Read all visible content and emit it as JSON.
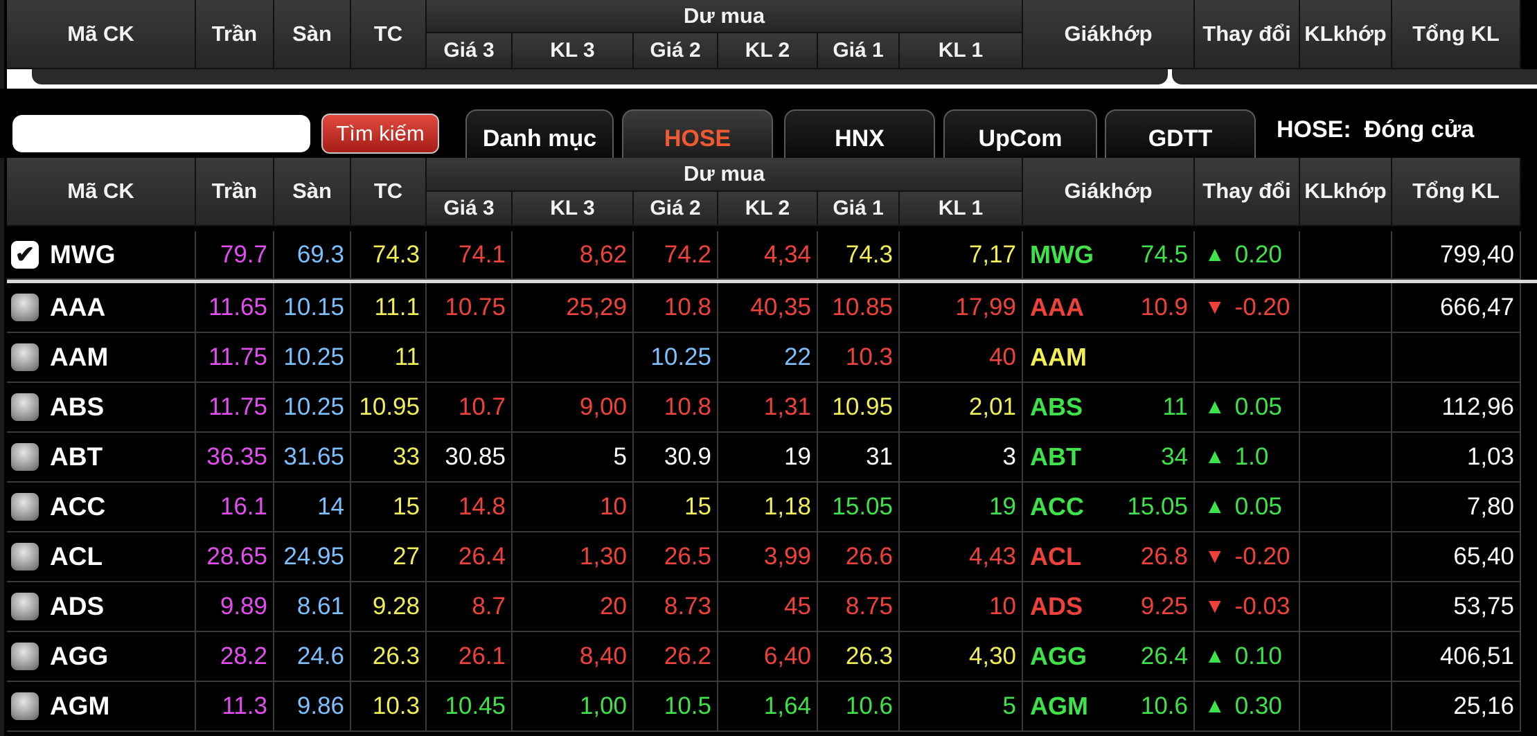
{
  "header": {
    "ma_ck": "Mã CK",
    "tran": "Trần",
    "san": "Sàn",
    "tc": "TC",
    "du_mua": "Dư mua",
    "gia3": "Giá 3",
    "kl3": "KL 3",
    "gia2": "Giá 2",
    "kl2": "KL 2",
    "gia1": "Giá 1",
    "kl1": "KL 1",
    "gia_khop_1": "Giá",
    "gia_khop_2": "khớp",
    "thay_doi": "Thay đổi",
    "kl_khop_1": "KL",
    "kl_khop_2": "khớp",
    "tong_kl": "Tổng KL"
  },
  "toolbar": {
    "search_placeholder": "",
    "search_label": "Tìm kiếm",
    "tabs": [
      "Danh mục",
      "HOSE",
      "HNX",
      "UpCom",
      "GDTT"
    ],
    "active_tab": "HOSE",
    "status": "HOSE:  Đóng cửa"
  },
  "colors": {
    "ceiling": "#e34ef0",
    "floor": "#7cc0ff",
    "reference": "#f2ef55",
    "down": "#f0413a",
    "up": "#3ee34a"
  },
  "rows": [
    {
      "sym": "MWG",
      "checked": true,
      "tran": "79.7",
      "san": "69.3",
      "tc": "74.3",
      "g3": "74.1",
      "kl3": "8,62",
      "g2": "74.2",
      "kl2": "4,34",
      "g1": "74.3",
      "kl1": "7,17",
      "msym": "MWG",
      "khop": "74.5",
      "dir": "up",
      "chg": "0.20",
      "klkhop": "",
      "tong": "799,40"
    },
    {
      "sym": "AAA",
      "checked": false,
      "tran": "11.65",
      "san": "10.15",
      "tc": "11.1",
      "g3": "10.75",
      "kl3": "25,29",
      "g2": "10.8",
      "kl2": "40,35",
      "g1": "10.85",
      "kl1": "17,99",
      "msym": "AAA",
      "khop": "10.9",
      "dir": "down",
      "chg": "-0.20",
      "klkhop": "",
      "tong": "666,47"
    },
    {
      "sym": "AAM",
      "checked": false,
      "tran": "11.75",
      "san": "10.25",
      "tc": "11",
      "g3": "",
      "kl3": "",
      "g2": "10.25",
      "kl2": "22",
      "g1": "10.3",
      "kl1": "40",
      "msym": "AAM",
      "khop": "",
      "dir": "none",
      "chg": "",
      "klkhop": "",
      "tong": ""
    },
    {
      "sym": "ABS",
      "checked": false,
      "tran": "11.75",
      "san": "10.25",
      "tc": "10.95",
      "g3": "10.7",
      "kl3": "9,00",
      "g2": "10.8",
      "kl2": "1,31",
      "g1": "10.95",
      "kl1": "2,01",
      "msym": "ABS",
      "khop": "11",
      "dir": "up",
      "chg": "0.05",
      "klkhop": "",
      "tong": "112,96"
    },
    {
      "sym": "ABT",
      "checked": false,
      "tran": "36.35",
      "san": "31.65",
      "tc": "33",
      "g3": "30.85",
      "kl3": "5",
      "g2": "30.9",
      "kl2": "19",
      "g1": "31",
      "kl1": "3",
      "msym": "ABT",
      "khop": "34",
      "dir": "up",
      "chg": "1.0",
      "klkhop": "",
      "tong": "1,03"
    },
    {
      "sym": "ACC",
      "checked": false,
      "tran": "16.1",
      "san": "14",
      "tc": "15",
      "g3": "14.8",
      "kl3": "10",
      "g2": "15",
      "kl2": "1,18",
      "g1": "15.05",
      "kl1": "19",
      "msym": "ACC",
      "khop": "15.05",
      "dir": "up",
      "chg": "0.05",
      "klkhop": "",
      "tong": "7,80"
    },
    {
      "sym": "ACL",
      "checked": false,
      "tran": "28.65",
      "san": "24.95",
      "tc": "27",
      "g3": "26.4",
      "kl3": "1,30",
      "g2": "26.5",
      "kl2": "3,99",
      "g1": "26.6",
      "kl1": "4,43",
      "msym": "ACL",
      "khop": "26.8",
      "dir": "down",
      "chg": "-0.20",
      "klkhop": "",
      "tong": "65,40"
    },
    {
      "sym": "ADS",
      "checked": false,
      "tran": "9.89",
      "san": "8.61",
      "tc": "9.28",
      "g3": "8.7",
      "kl3": "20",
      "g2": "8.73",
      "kl2": "45",
      "g1": "8.75",
      "kl1": "10",
      "msym": "ADS",
      "khop": "9.25",
      "dir": "down",
      "chg": "-0.03",
      "klkhop": "",
      "tong": "53,75"
    },
    {
      "sym": "AGG",
      "checked": false,
      "tran": "28.2",
      "san": "24.6",
      "tc": "26.3",
      "g3": "26.1",
      "kl3": "8,40",
      "g2": "26.2",
      "kl2": "6,40",
      "g1": "26.3",
      "kl1": "4,30",
      "msym": "AGG",
      "khop": "26.4",
      "dir": "up",
      "chg": "0.10",
      "klkhop": "",
      "tong": "406,51"
    },
    {
      "sym": "AGM",
      "checked": false,
      "tran": "11.3",
      "san": "9.86",
      "tc": "10.3",
      "g3": "10.45",
      "kl3": "1,00",
      "g2": "10.5",
      "kl2": "1,64",
      "g1": "10.6",
      "kl1": "5",
      "msym": "AGM",
      "khop": "10.6",
      "dir": "up",
      "chg": "0.30",
      "klkhop": "",
      "tong": "25,16"
    }
  ],
  "row_colors": [
    {
      "bid3": "red",
      "bid2": "red",
      "bid1": "yellow",
      "match": "green"
    },
    {
      "bid3": "red",
      "bid2": "red",
      "bid1": "red",
      "match": "red"
    },
    {
      "bid3": "red",
      "bid2": "blue",
      "bid1": "red",
      "match": "yellow"
    },
    {
      "bid3": "red",
      "bid2": "red",
      "bid1": "yellow",
      "match": "green"
    },
    {
      "bid3": "white",
      "bid2": "white",
      "bid1": "white",
      "match": "green"
    },
    {
      "bid3": "red",
      "bid2": "yellow",
      "bid1": "green",
      "match": "green"
    },
    {
      "bid3": "red",
      "bid2": "red",
      "bid1": "red",
      "match": "red"
    },
    {
      "bid3": "red",
      "bid2": "red",
      "bid1": "red",
      "match": "red"
    },
    {
      "bid3": "red",
      "bid2": "red",
      "bid1": "yellow",
      "match": "green"
    },
    {
      "bid3": "green",
      "bid2": "green",
      "bid1": "green",
      "match": "green"
    }
  ]
}
